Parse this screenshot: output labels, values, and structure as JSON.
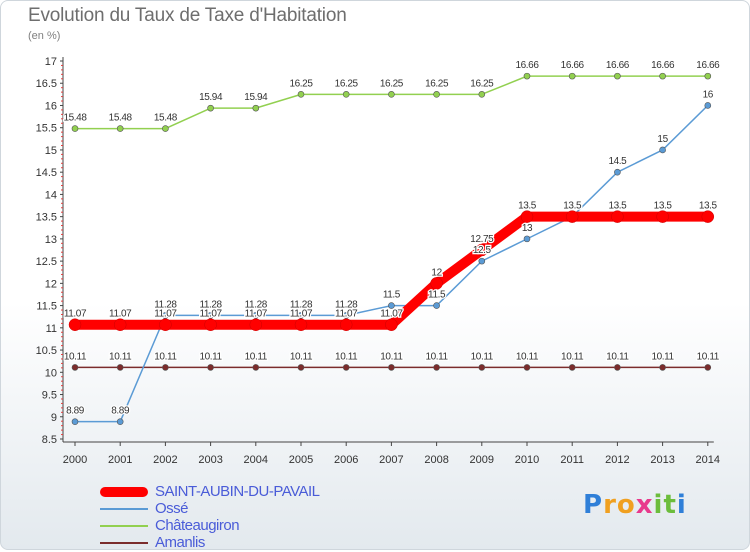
{
  "chart_data": {
    "type": "line",
    "title": "Evolution du Taux de Taxe d'Habitation",
    "subtitle": "(en %)",
    "x": [
      "2000",
      "2001",
      "2002",
      "2003",
      "2004",
      "2005",
      "2006",
      "2007",
      "2008",
      "2009",
      "2010",
      "2011",
      "2012",
      "2013",
      "2014"
    ],
    "ylim": [
      8.5,
      17
    ],
    "yticks": [
      "8.5",
      "9",
      "9.5",
      "10",
      "10.5",
      "11",
      "11.5",
      "12",
      "12.5",
      "13",
      "13.5",
      "14",
      "14.5",
      "15",
      "15.5",
      "16",
      "16.5",
      "17"
    ],
    "grid": false,
    "legend_position": "bottom-left",
    "series": [
      {
        "name": "SAINT-AUBIN-DU-PAVAIL",
        "color": "#ff0000",
        "values": [
          11.07,
          11.07,
          11.07,
          11.07,
          11.07,
          11.07,
          11.07,
          11.07,
          12,
          12.75,
          13.5,
          13.5,
          13.5,
          13.5,
          13.5
        ],
        "labels": [
          "11.07",
          "11.07",
          "11.07",
          "11.07",
          "11.07",
          "11.07",
          "11.07",
          "11.07",
          "12",
          "12.75",
          "13.5",
          "13.5",
          "13.5",
          "13.5",
          "13.5"
        ]
      },
      {
        "name": "Ossé",
        "color": "#5b9bd5",
        "values": [
          8.89,
          8.89,
          11.28,
          11.28,
          11.28,
          11.28,
          11.28,
          11.5,
          11.5,
          12.5,
          13,
          13.5,
          14.5,
          15,
          16
        ],
        "labels": [
          "8.89",
          "8.89",
          "11.28",
          "11.28",
          "11.28",
          "11.28",
          "11.28",
          "11.5",
          "11.5",
          "12.5",
          "13",
          "13.5",
          "14.5",
          "15",
          "16"
        ]
      },
      {
        "name": "Châteaugiron",
        "color": "#92d050",
        "values": [
          15.48,
          15.48,
          15.48,
          15.94,
          15.94,
          16.25,
          16.25,
          16.25,
          16.25,
          16.25,
          16.66,
          16.66,
          16.66,
          16.66,
          16.66
        ],
        "labels": [
          "15.48",
          "15.48",
          "15.48",
          "15.94",
          "15.94",
          "16.25",
          "16.25",
          "16.25",
          "16.25",
          "16.25",
          "16.66",
          "16.66",
          "16.66",
          "16.66",
          "16.66"
        ]
      },
      {
        "name": "Amanlis",
        "color": "#7b2c2c",
        "values": [
          10.11,
          10.11,
          10.11,
          10.11,
          10.11,
          10.11,
          10.11,
          10.11,
          10.11,
          10.11,
          10.11,
          10.11,
          10.11,
          10.11,
          10.11
        ],
        "labels": [
          "10.11",
          "10.11",
          "10.11",
          "10.11",
          "10.11",
          "10.11",
          "10.11",
          "10.11",
          "10.11",
          "10.11",
          "10.11",
          "10.11",
          "10.11",
          "10.11",
          "10.11"
        ]
      }
    ]
  },
  "logo": {
    "text": "Proxiti",
    "letters": [
      "P",
      "r",
      "o",
      "x",
      "i",
      "t",
      "i"
    ]
  },
  "colors": {
    "axis": "#444444",
    "dot_stroke": "#555555"
  }
}
